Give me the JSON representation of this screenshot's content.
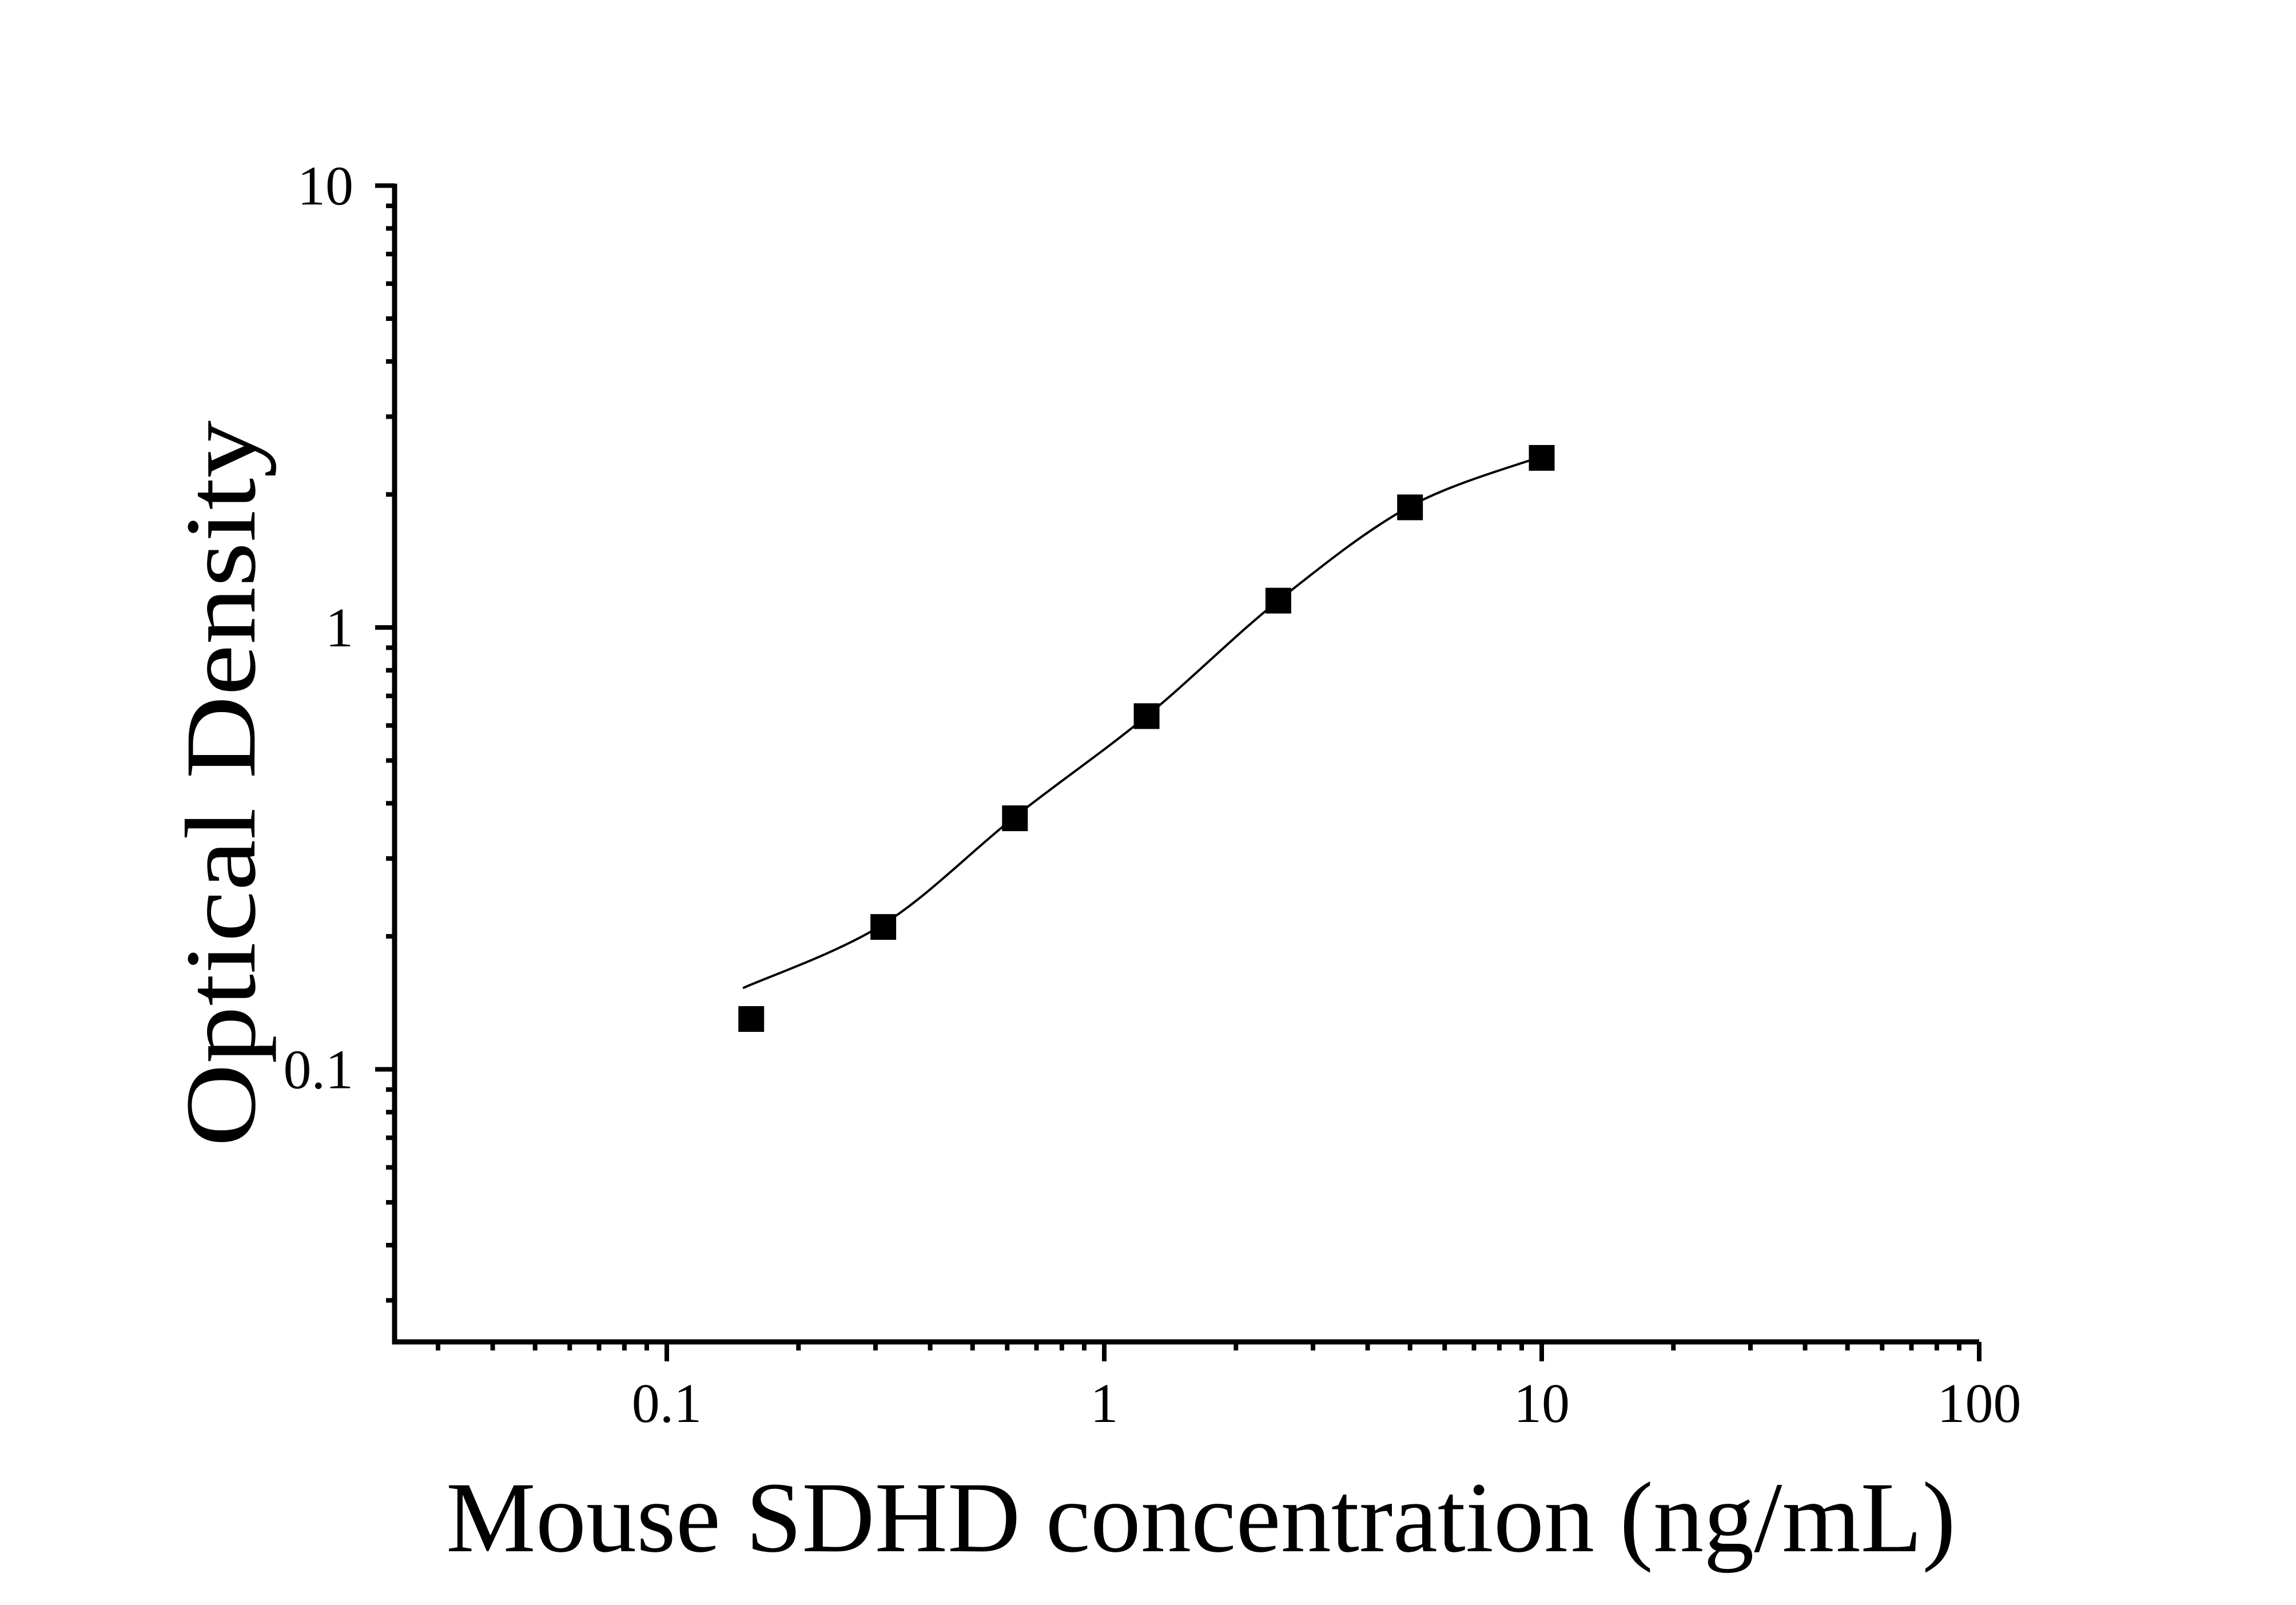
{
  "figure": {
    "background": "#ffffff",
    "ink": "#000000"
  },
  "chart_data": {
    "type": "scatter",
    "title": "",
    "xlabel": "Mouse SDHD concentration (ng/mL)",
    "ylabel": "Optical Density",
    "x_scale": "log",
    "y_scale": "log",
    "x_range": [
      0.025,
      100
    ],
    "y_range": [
      0.024,
      10
    ],
    "grid": false,
    "legend": false,
    "x_ticks": [
      {
        "v": 0.1,
        "label": "0.1"
      },
      {
        "v": 1,
        "label": "1"
      },
      {
        "v": 10,
        "label": "10"
      },
      {
        "v": 100,
        "label": "100"
      }
    ],
    "y_ticks": [
      {
        "v": 10,
        "label": "10"
      },
      {
        "v": 1,
        "label": "1"
      },
      {
        "v": 0.1,
        "label": "0.1"
      }
    ],
    "series": [
      {
        "name": "standard-curve-points",
        "marker": "filled-square",
        "color": "#000000",
        "x": [
          0.156,
          0.3125,
          0.625,
          1.25,
          2.5,
          5,
          10
        ],
        "y": [
          0.13,
          0.21,
          0.37,
          0.63,
          1.15,
          1.87,
          2.42
        ]
      }
    ],
    "fit_curve": {
      "name": "4pl-fit-line",
      "color": "#000000",
      "x": [
        0.15,
        0.3125,
        0.625,
        1.25,
        2.5,
        5,
        10
      ],
      "y": [
        0.153,
        0.213,
        0.373,
        0.63,
        1.15,
        1.88,
        2.44
      ]
    }
  }
}
